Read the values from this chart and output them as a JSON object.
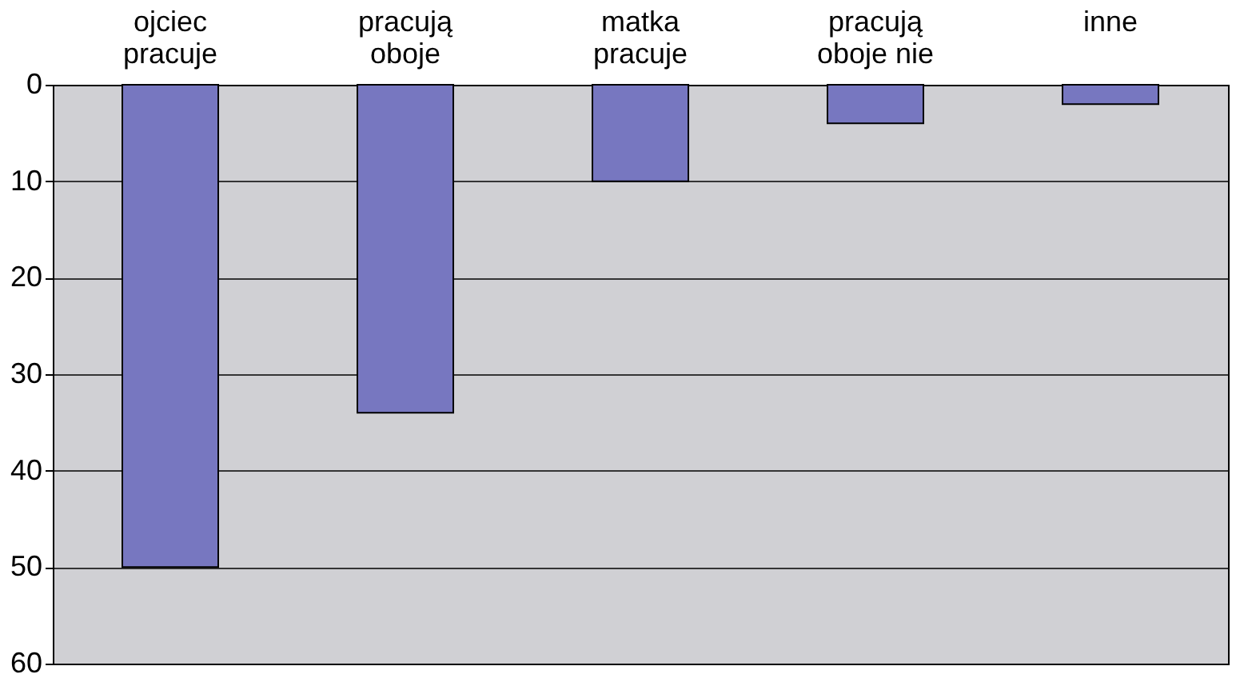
{
  "chart_data": {
    "type": "bar",
    "categories": [
      "ojciec pracuje",
      "pracują oboje",
      "matka pracuje",
      "pracują oboje nie",
      "inne"
    ],
    "values": [
      50,
      34,
      10,
      4,
      2
    ],
    "color": "#7777c0",
    "ylim": [
      60,
      0
    ],
    "yticks": [
      0,
      10,
      20,
      30,
      40,
      50,
      60
    ],
    "grid": "y"
  }
}
